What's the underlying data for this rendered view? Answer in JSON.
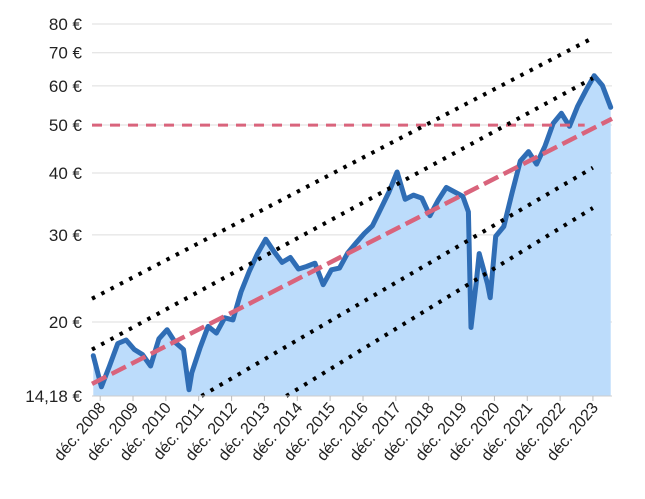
{
  "chart_data": {
    "type": "area",
    "y_scale": "log",
    "ylim": [
      14.18,
      80
    ],
    "xlim": [
      "2008-09-01",
      "2024-06-30"
    ],
    "grid": "horizontal",
    "legend": "none",
    "yticks": [
      14.18,
      20,
      30,
      40,
      50,
      60,
      70,
      80
    ],
    "ytick_labels": [
      "14,18 €",
      "20 €",
      "30 €",
      "40 €",
      "50 €",
      "60 €",
      "70 €",
      "80 €"
    ],
    "xticks": [
      "2008-12-01",
      "2009-12-01",
      "2010-12-01",
      "2011-12-01",
      "2012-12-01",
      "2013-12-01",
      "2014-12-01",
      "2015-12-01",
      "2016-12-01",
      "2017-12-01",
      "2018-12-01",
      "2019-12-01",
      "2020-12-01",
      "2021-12-01",
      "2022-12-01",
      "2023-12-01"
    ],
    "xtick_labels": [
      "déc. 2008",
      "déc. 2009",
      "déc. 2010",
      "déc. 2011",
      "déc. 2012",
      "déc. 2013",
      "déc. 2014",
      "déc. 2015",
      "déc. 2016",
      "déc. 2017",
      "déc. 2018",
      "déc. 2019",
      "déc. 2020",
      "déc. 2021",
      "déc. 2022",
      "déc. 2023"
    ],
    "colors": {
      "price_line": "#2f6db5",
      "area_fill": "#bcdcfb",
      "trend": "#d9647c",
      "channels": "#000000",
      "grid": "#dddddd"
    },
    "series": [
      {
        "kind": "price",
        "x": [
          "2008-09",
          "2008-12",
          "2009-03",
          "2009-06",
          "2009-09",
          "2009-12",
          "2010-03",
          "2010-06",
          "2010-09",
          "2010-12",
          "2011-03",
          "2011-06",
          "2011-08",
          "2011-09",
          "2011-12",
          "2012-03",
          "2012-06",
          "2012-09",
          "2012-12",
          "2013-03",
          "2013-06",
          "2013-09",
          "2013-12",
          "2014-03",
          "2014-06",
          "2014-09",
          "2014-12",
          "2015-03",
          "2015-06",
          "2015-09",
          "2015-12",
          "2016-03",
          "2016-06",
          "2016-09",
          "2016-12",
          "2017-03",
          "2017-06",
          "2017-09",
          "2017-12",
          "2018-03",
          "2018-06",
          "2018-09",
          "2018-12",
          "2019-03",
          "2019-06",
          "2019-12",
          "2020-02",
          "2020-03",
          "2020-05",
          "2020-06",
          "2020-09",
          "2020-10",
          "2020-12",
          "2021-03",
          "2021-06",
          "2021-09",
          "2021-12",
          "2022-03",
          "2022-06",
          "2022-09",
          "2022-12",
          "2023-03",
          "2023-06",
          "2023-09",
          "2023-12",
          "2024-03",
          "2024-06"
        ],
        "values": [
          17.1,
          14.8,
          16.3,
          18.1,
          18.4,
          17.6,
          17.2,
          16.3,
          18.5,
          19.3,
          18.2,
          17.6,
          14.6,
          15.8,
          17.7,
          19.6,
          19.0,
          20.4,
          20.2,
          23.0,
          25.3,
          27.5,
          29.4,
          27.8,
          26.4,
          27.0,
          25.6,
          25.9,
          26.3,
          23.8,
          25.5,
          25.7,
          27.6,
          28.9,
          30.2,
          31.3,
          33.8,
          36.6,
          40.2,
          35.4,
          36.1,
          35.6,
          32.8,
          35.2,
          37.4,
          35.9,
          33.4,
          19.5,
          24.2,
          27.5,
          23.9,
          22.4,
          29.8,
          31.2,
          36.5,
          42.3,
          44.2,
          41.7,
          45.3,
          50.4,
          52.8,
          49.7,
          54.6,
          58.8,
          62.9,
          60.1,
          54.3
        ]
      },
      {
        "kind": "trend",
        "x": [
          "2008-09-01",
          "2024-06-30"
        ],
        "values": [
          15.0,
          51.5
        ]
      },
      {
        "kind": "level",
        "x": [
          "2008-09-01",
          "2023-09-01"
        ],
        "values": [
          50,
          50
        ]
      },
      {
        "kind": "channel",
        "x": [
          "2008-09-01",
          "2023-12-01"
        ],
        "values": [
          22.3,
          75.0
        ]
      },
      {
        "kind": "channel",
        "x": [
          "2008-09-01",
          "2023-12-01"
        ],
        "values": [
          17.6,
          62.2
        ]
      },
      {
        "kind": "channel",
        "x": [
          "2012-01-01",
          "2023-12-01"
        ],
        "values": [
          14.18,
          41.0
        ]
      },
      {
        "kind": "channel",
        "x": [
          "2014-08-01",
          "2023-12-01"
        ],
        "values": [
          14.18,
          34.0
        ]
      }
    ]
  }
}
